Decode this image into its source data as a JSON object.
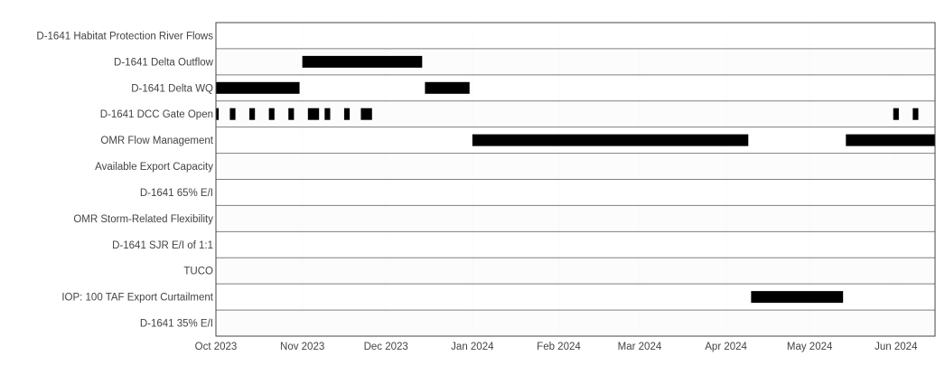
{
  "chart_data": {
    "type": "bar",
    "orientation": "horizontal-timeline",
    "x_range": [
      "2023-10-01",
      "2024-06-15"
    ],
    "categories": [
      "D-1641 Habitat Protection River Flows",
      "D-1641 Delta Outflow",
      "D-1641 Delta WQ",
      "D-1641 DCC Gate Open",
      "OMR Flow Management",
      "Available Export Capacity",
      "D-1641 65% E/I",
      "OMR Storm-Related Flexibility",
      "D-1641 SJR E/I of 1:1",
      "TUCO",
      "IOP: 100 TAF Export Curtailment",
      "D-1641 35% E/I"
    ],
    "x_ticks": [
      {
        "date": "2023-10-01",
        "label": "Oct 2023"
      },
      {
        "date": "2023-11-01",
        "label": "Nov 2023"
      },
      {
        "date": "2023-12-01",
        "label": "Dec 2023"
      },
      {
        "date": "2024-01-01",
        "label": "Jan 2024"
      },
      {
        "date": "2024-02-01",
        "label": "Feb 2024"
      },
      {
        "date": "2024-03-01",
        "label": "Mar 2024"
      },
      {
        "date": "2024-04-01",
        "label": "Apr 2024"
      },
      {
        "date": "2024-05-01",
        "label": "May 2024"
      },
      {
        "date": "2024-06-01",
        "label": "Jun 2024"
      }
    ],
    "series": [
      {
        "category": "D-1641 Delta Outflow",
        "start": "2023-11-01",
        "end": "2023-12-14"
      },
      {
        "category": "D-1641 Delta WQ",
        "start": "2023-10-01",
        "end": "2023-10-31"
      },
      {
        "category": "D-1641 Delta WQ",
        "start": "2023-12-15",
        "end": "2023-12-31"
      },
      {
        "category": "D-1641 DCC Gate Open",
        "start": "2023-10-01",
        "end": "2023-10-02"
      },
      {
        "category": "D-1641 DCC Gate Open",
        "start": "2023-10-06",
        "end": "2023-10-08"
      },
      {
        "category": "D-1641 DCC Gate Open",
        "start": "2023-10-13",
        "end": "2023-10-15"
      },
      {
        "category": "D-1641 DCC Gate Open",
        "start": "2023-10-20",
        "end": "2023-10-22"
      },
      {
        "category": "D-1641 DCC Gate Open",
        "start": "2023-10-27",
        "end": "2023-10-29"
      },
      {
        "category": "D-1641 DCC Gate Open",
        "start": "2023-11-03",
        "end": "2023-11-07"
      },
      {
        "category": "D-1641 DCC Gate Open",
        "start": "2023-11-09",
        "end": "2023-11-11"
      },
      {
        "category": "D-1641 DCC Gate Open",
        "start": "2023-11-16",
        "end": "2023-11-18"
      },
      {
        "category": "D-1641 DCC Gate Open",
        "start": "2023-11-22",
        "end": "2023-11-26"
      },
      {
        "category": "D-1641 DCC Gate Open",
        "start": "2024-05-31",
        "end": "2024-06-02"
      },
      {
        "category": "D-1641 DCC Gate Open",
        "start": "2024-06-07",
        "end": "2024-06-09"
      },
      {
        "category": "OMR Flow Management",
        "start": "2024-01-01",
        "end": "2024-04-09"
      },
      {
        "category": "OMR Flow Management",
        "start": "2024-05-14",
        "end": "2024-06-15"
      },
      {
        "category": "IOP: 100 TAF Export Curtailment",
        "start": "2024-04-10",
        "end": "2024-05-13"
      }
    ],
    "bar_color": "#000000",
    "grid": true,
    "legend": "none"
  }
}
